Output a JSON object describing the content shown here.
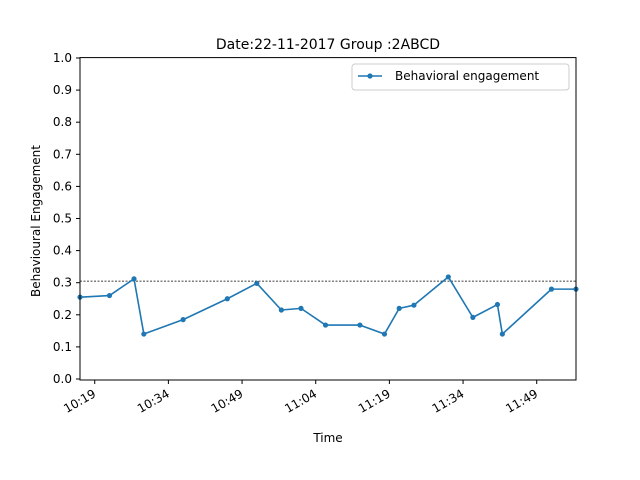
{
  "chart_data": {
    "type": "line",
    "title": "Date:22-11-2017 Group :2ABCD",
    "xlabel": "Time",
    "ylabel": "Behavioural Engagement",
    "ylim": [
      0.0,
      1.0
    ],
    "xlim": [
      "10:16",
      "11:57"
    ],
    "y_ticks": [
      "0.0",
      "0.1",
      "0.2",
      "0.3",
      "0.4",
      "0.5",
      "0.6",
      "0.7",
      "0.8",
      "0.9",
      "1.0"
    ],
    "x_ticks": [
      "10:19",
      "10:34",
      "10:49",
      "11:04",
      "11:19",
      "11:34",
      "11:49"
    ],
    "reference_line": {
      "y": 0.305,
      "style": "dashed"
    },
    "legend": {
      "position": "top-right",
      "entries": [
        "Behavioral engagement"
      ]
    },
    "colors": {
      "series": "#1f77b4",
      "reference": "#000000"
    },
    "series": [
      {
        "name": "Behavioral engagement",
        "x": [
          "10:16",
          "10:22",
          "10:27",
          "10:29",
          "10:37",
          "10:46",
          "10:52",
          "10:57",
          "11:01",
          "11:06",
          "11:13",
          "11:18",
          "11:21",
          "11:24",
          "11:31",
          "11:36",
          "11:41",
          "11:42",
          "11:52",
          "11:57"
        ],
        "values": [
          0.255,
          0.26,
          0.312,
          0.14,
          0.185,
          0.25,
          0.298,
          0.215,
          0.22,
          0.168,
          0.168,
          0.14,
          0.22,
          0.23,
          0.318,
          0.192,
          0.232,
          0.14,
          0.28,
          0.28
        ]
      }
    ]
  }
}
